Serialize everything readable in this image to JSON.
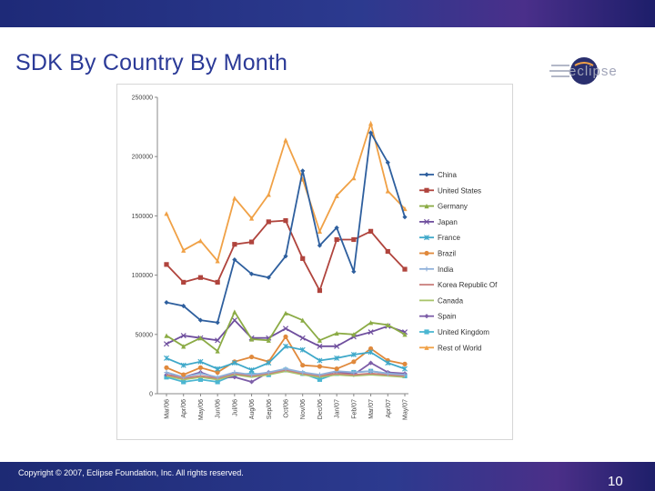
{
  "slide": {
    "title": "SDK By Country By Month",
    "logo_text": "eclipse",
    "copyright": "Copyright © 2007, Eclipse Foundation, Inc. All rights reserved.",
    "page_number": "10"
  },
  "colors": {
    "top_bar": "#2c3a8f",
    "title_text": "#2b3a97",
    "bottom_bar": "#2c3a8f"
  },
  "chart_data": {
    "type": "line",
    "title": "",
    "xlabel": "",
    "ylabel": "",
    "ylim": [
      0,
      250000
    ],
    "yticks": [
      "0",
      "50000",
      "100000",
      "150000",
      "200000",
      "250000"
    ],
    "grid": false,
    "legend": "right",
    "categories": [
      "Mar/06",
      "Apr/06",
      "May/06",
      "Jun/06",
      "Jul/06",
      "Aug/06",
      "Sep/06",
      "Oct/06",
      "Nov/06",
      "Dec/06",
      "Jan/07",
      "Feb/07",
      "Mar/07",
      "Apr/07",
      "May/07"
    ],
    "series": [
      {
        "name": "China",
        "color": "#2e5f9e",
        "marker": "diamond",
        "values": [
          77000,
          74000,
          62000,
          60000,
          113000,
          101000,
          98000,
          116000,
          188000,
          125000,
          140000,
          103000,
          220000,
          195000,
          149000
        ]
      },
      {
        "name": "United States",
        "color": "#b0443d",
        "marker": "square",
        "values": [
          109000,
          94000,
          98000,
          94000,
          126000,
          128000,
          145000,
          146000,
          114000,
          87000,
          130000,
          130000,
          137000,
          120000,
          105000
        ]
      },
      {
        "name": "Germany",
        "color": "#8bab45",
        "marker": "triangle",
        "values": [
          49000,
          40000,
          47000,
          36000,
          69000,
          46000,
          45000,
          68000,
          62000,
          45000,
          51000,
          50000,
          60000,
          58000,
          50000
        ]
      },
      {
        "name": "Japan",
        "color": "#6f4f9e",
        "marker": "x",
        "values": [
          42000,
          49000,
          47000,
          45000,
          62000,
          47000,
          47000,
          55000,
          47000,
          40000,
          40000,
          48000,
          52000,
          57000,
          52000
        ]
      },
      {
        "name": "France",
        "color": "#3ea8c9",
        "marker": "star",
        "values": [
          30000,
          24000,
          27000,
          21000,
          26000,
          20000,
          26000,
          40000,
          37000,
          28000,
          30000,
          33000,
          35000,
          26000,
          21000
        ]
      },
      {
        "name": "Brazil",
        "color": "#e0893c",
        "marker": "circle",
        "values": [
          22000,
          16000,
          22000,
          18000,
          27000,
          31000,
          27000,
          48000,
          24000,
          23000,
          21000,
          27000,
          38000,
          28000,
          25000
        ]
      },
      {
        "name": "India",
        "color": "#8fb0da",
        "marker": "plus",
        "values": [
          18000,
          14000,
          17000,
          14000,
          18000,
          16000,
          18000,
          21000,
          18000,
          16000,
          19000,
          18000,
          19000,
          17000,
          16000
        ]
      },
      {
        "name": "Korea Republic Of",
        "color": "#c97f7c",
        "marker": "none",
        "values": [
          16000,
          13000,
          15000,
          13000,
          17000,
          15000,
          17000,
          20000,
          17000,
          15000,
          17000,
          16000,
          17000,
          16000,
          15000
        ]
      },
      {
        "name": "Canada",
        "color": "#a8c46a",
        "marker": "none",
        "values": [
          15000,
          12000,
          14000,
          12000,
          16000,
          14000,
          16000,
          19000,
          16000,
          14000,
          16000,
          15000,
          16000,
          15000,
          14000
        ]
      },
      {
        "name": "Spain",
        "color": "#7d5ea8",
        "marker": "diamond",
        "values": [
          16000,
          14000,
          18000,
          13000,
          14000,
          10000,
          18000,
          20000,
          17000,
          15000,
          19000,
          16000,
          26000,
          18000,
          17000
        ]
      },
      {
        "name": "United Kingdom",
        "color": "#4bb6d1",
        "marker": "square",
        "values": [
          14000,
          10000,
          12000,
          10000,
          16000,
          17000,
          16000,
          20000,
          17000,
          12000,
          17000,
          18000,
          19000,
          17000,
          15000
        ]
      },
      {
        "name": "Rest of World",
        "color": "#f0a146",
        "marker": "triangle",
        "values": [
          152000,
          121000,
          129000,
          112000,
          165000,
          148000,
          168000,
          214000,
          181000,
          137000,
          167000,
          182000,
          228000,
          171000,
          156000
        ]
      }
    ]
  }
}
